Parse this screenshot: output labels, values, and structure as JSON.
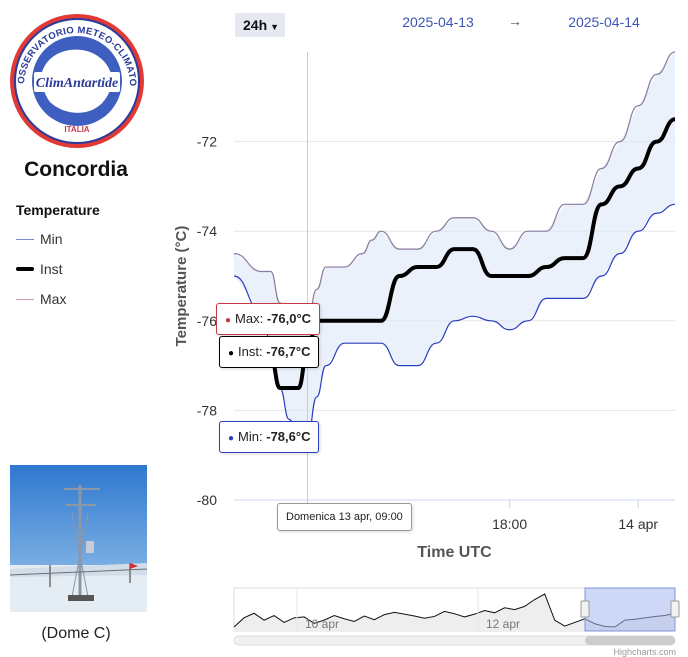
{
  "station": {
    "name": "Concordia",
    "photo_caption": "(Dome C)",
    "logo": {
      "ring_text": "OSSERVATORIO METEO-CLIMATOLOGICO ANTARTICO",
      "brand": "ClimAntartide",
      "country": "ITALIA"
    }
  },
  "legend": {
    "title": "Temperature",
    "items": [
      {
        "label": "Min",
        "color": "#7d8bd6"
      },
      {
        "label": "Inst",
        "color": "#000000"
      },
      {
        "label": "Max",
        "color": "#d7a0a6"
      }
    ]
  },
  "controls": {
    "range_label": "24h",
    "date_from": "2025-04-13",
    "arrow": "→",
    "date_to": "2025-04-14"
  },
  "tooltips": {
    "max": {
      "label": "Max:",
      "value": "-76,0°C"
    },
    "inst": {
      "label": "Inst:",
      "value": "-76,7°C"
    },
    "min": {
      "label": "Min:",
      "value": "-78,6°C"
    },
    "x": "Domenica 13 apr, 09:00"
  },
  "credits": "Highcharts.com",
  "chart_data": {
    "type": "line",
    "ylabel": "Temperature (°C)",
    "xlabel": "Time UTC",
    "ylim": [
      -80,
      -70
    ],
    "yticks": [
      -72,
      -74,
      -76,
      -78,
      -80
    ],
    "x_ticks": [
      "18:00",
      "14 apr"
    ],
    "grid": true,
    "x_hours": [
      0,
      1.5,
      2,
      2.5,
      3,
      3.5,
      4,
      4.5,
      5,
      6,
      7,
      7.5,
      8,
      9,
      10,
      11,
      12,
      13,
      14,
      15,
      16,
      17,
      18,
      18.5,
      19,
      20,
      21,
      22,
      23,
      24
    ],
    "series": [
      {
        "name": "Max",
        "color": "#8a7aa0",
        "values": [
          -74.5,
          -74.9,
          -74.9,
          -75.6,
          -76.1,
          -76.1,
          -76.0,
          -75.3,
          -74.8,
          -74.8,
          -74.5,
          -74.2,
          -74.0,
          -74.4,
          -74.4,
          -74.0,
          -73.7,
          -73.7,
          -74.0,
          -74.4,
          -74.0,
          -74.0,
          -73.4,
          -73.4,
          -73.4,
          -72.6,
          -72.0,
          -71.2,
          -70.5,
          -70.0
        ]
      },
      {
        "name": "Inst",
        "color": "#000000",
        "values": [
          null,
          null,
          -76.8,
          -77.5,
          -77.5,
          -77.5,
          -76.7,
          -76.0,
          -76.0,
          -76.0,
          -76.0,
          -76.0,
          -76.0,
          -75.0,
          -74.8,
          -74.8,
          -74.4,
          -74.4,
          -75.0,
          -75.0,
          -75.0,
          -74.8,
          -74.6,
          -74.6,
          -74.6,
          -73.4,
          -73.0,
          -72.6,
          -72.0,
          -71.5
        ]
      },
      {
        "name": "Min",
        "color": "#2a3fbf",
        "values": [
          -75.0,
          -75.8,
          -76.5,
          -77.5,
          -78.2,
          -78.6,
          -78.6,
          -77.7,
          -77.0,
          -76.5,
          -76.5,
          -76.5,
          -76.5,
          -77.0,
          -77.0,
          -76.5,
          -76.0,
          -75.9,
          -76.0,
          -76.2,
          -76.0,
          -75.5,
          -75.5,
          -75.5,
          -75.5,
          -75.0,
          -74.5,
          -74.0,
          -73.6,
          -73.4
        ]
      }
    ],
    "navigator": {
      "x_labels": [
        "10 apr",
        "12 apr"
      ],
      "values": [
        -78,
        -76,
        -75,
        -76.5,
        -75.5,
        -77,
        -76,
        -75.8,
        -77.2,
        -76.5,
        -75.5,
        -76.2,
        -76.8,
        -75.6,
        -76.4,
        -75.3,
        -74.8,
        -75.2,
        -75.6,
        -76.1,
        -75.7,
        -74.6,
        -75.1,
        -75.8,
        -75.2,
        -74.4,
        -74.9,
        -73.8,
        -74.2,
        -73.5,
        -72.0,
        -70.8,
        -76.5,
        -77.8,
        -77.0,
        -76.2,
        -77.3,
        -77.9,
        -78.0,
        -76.5,
        -76.3,
        -76.0,
        -75.7,
        -75.5,
        -75.0
      ]
    }
  }
}
